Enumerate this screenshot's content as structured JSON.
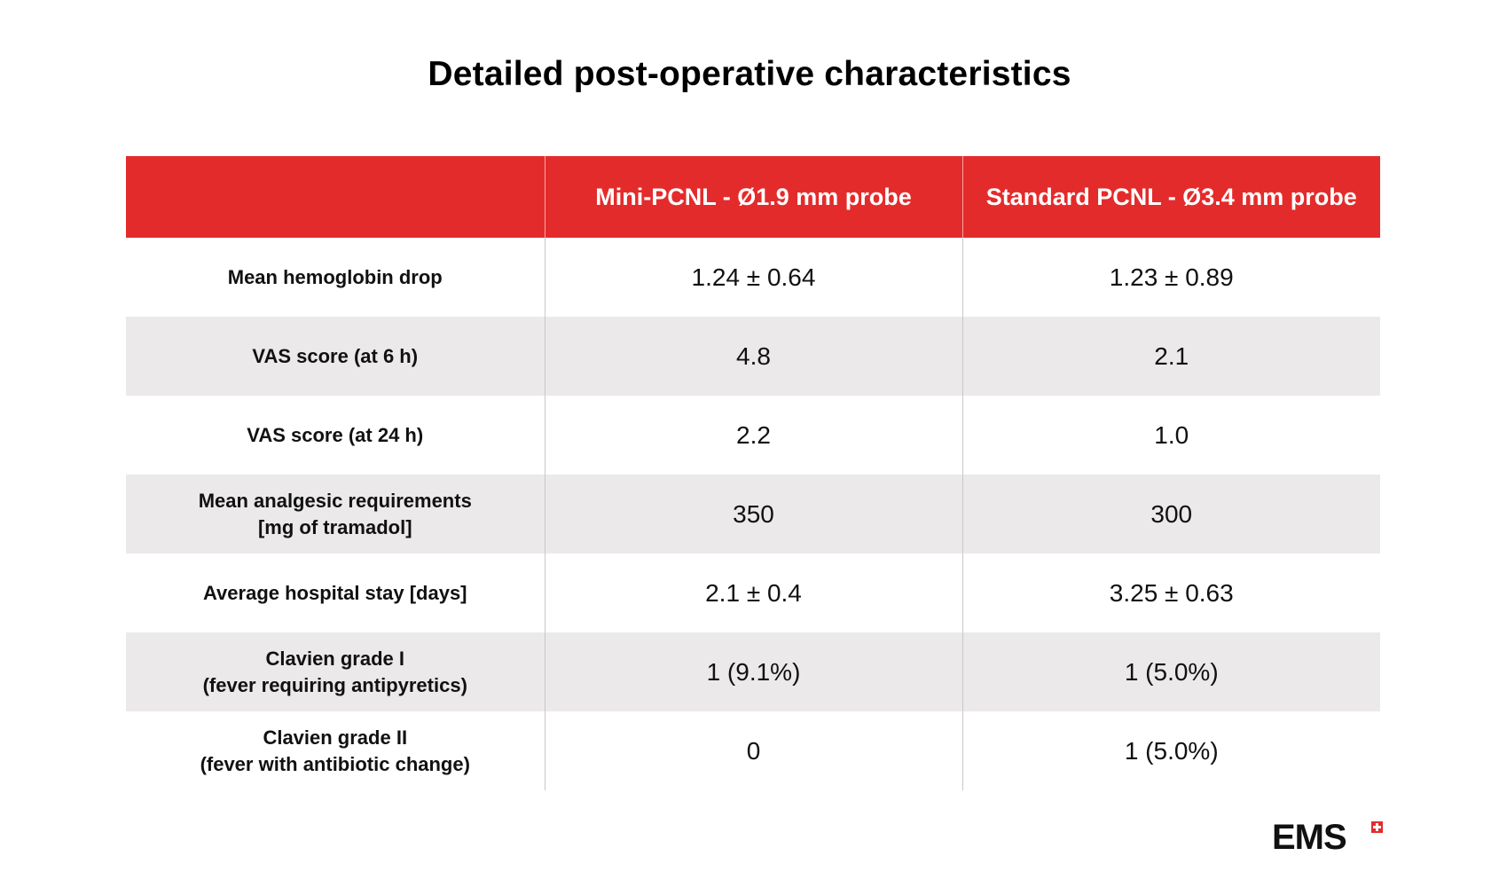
{
  "title": "Detailed post-operative characteristics",
  "table": {
    "headers": [
      "",
      "Mini-PCNL - Ø1.9 mm probe",
      "Standard PCNL - Ø3.4 mm probe"
    ],
    "rows": [
      {
        "label_lines": [
          "Mean hemoglobin drop"
        ],
        "mini": "1.24 ± 0.64",
        "standard": "1.23 ± 0.89"
      },
      {
        "label_lines": [
          "VAS score (at 6 h)"
        ],
        "mini": "4.8",
        "standard": "2.1"
      },
      {
        "label_lines": [
          "VAS score (at 24 h)"
        ],
        "mini": "2.2",
        "standard": "1.0"
      },
      {
        "label_lines": [
          "Mean analgesic requirements",
          "[mg of tramadol]"
        ],
        "mini": "350",
        "standard": "300"
      },
      {
        "label_lines": [
          "Average hospital stay [days]"
        ],
        "mini": "2.1 ± 0.4",
        "standard": "3.25 ± 0.63"
      },
      {
        "label_lines": [
          "Clavien grade I",
          "(fever requiring antipyretics)"
        ],
        "mini": "1 (9.1%)",
        "standard": "1 (5.0%)"
      },
      {
        "label_lines": [
          "Clavien grade II",
          "(fever with antibiotic change)"
        ],
        "mini": "0",
        "standard": "1 (5.0%)"
      }
    ]
  },
  "logo": {
    "text": "EMS",
    "icon": "swiss-cross-icon"
  },
  "colors": {
    "header_red": "#e42b2b",
    "alt_row": "#ebe9e9",
    "text": "#111111"
  }
}
